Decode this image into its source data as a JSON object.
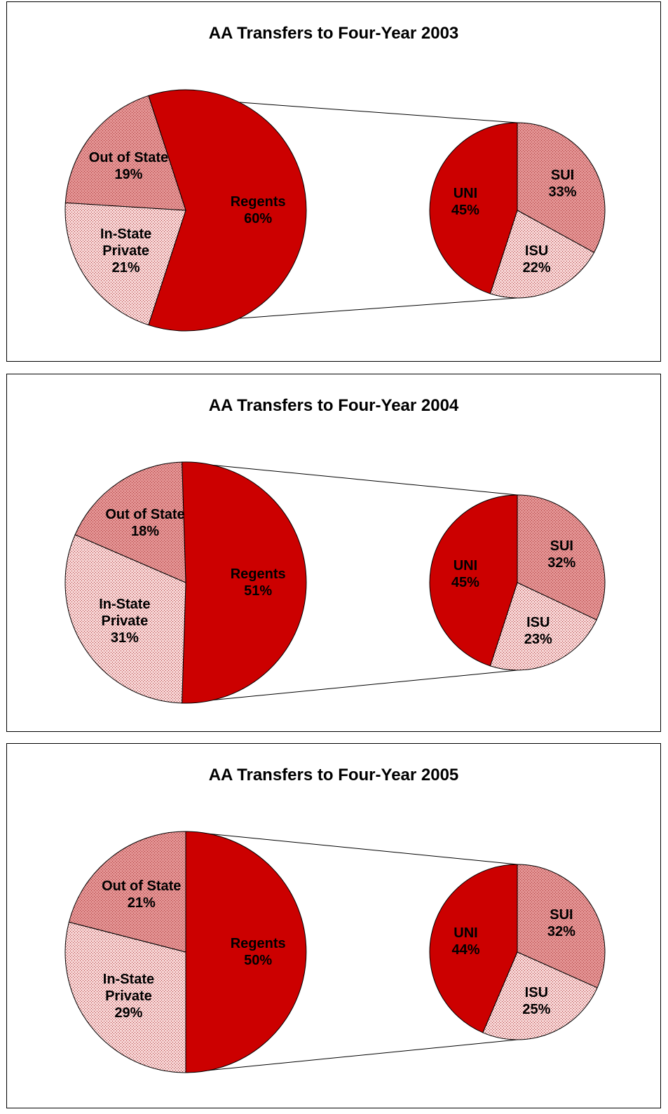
{
  "chart_data": [
    {
      "type": "pie",
      "title": "AA Transfers to Four-Year 2003",
      "categories": [
        "Out of State",
        "In-State Private",
        "Regents"
      ],
      "values": [
        19,
        21,
        60
      ],
      "value_labels": [
        "19%",
        "21%",
        "60%"
      ],
      "colors": [
        "#e39494",
        "#f7d6d6",
        "#cc0000"
      ],
      "breakout": {
        "categories": [
          "SUI",
          "ISU",
          "UNI"
        ],
        "values": [
          33,
          22,
          45
        ],
        "value_labels": [
          "33%",
          "22%",
          "45%"
        ],
        "colors": [
          "#e39494",
          "#f7d6d6",
          "#cc0000"
        ]
      }
    },
    {
      "type": "pie",
      "title": "AA Transfers to Four-Year 2004",
      "categories": [
        "Out of State",
        "In-State Private",
        "Regents"
      ],
      "values": [
        18,
        31,
        51
      ],
      "value_labels": [
        "18%",
        "31%",
        "51%"
      ],
      "colors": [
        "#e39494",
        "#f7d6d6",
        "#cc0000"
      ],
      "breakout": {
        "categories": [
          "SUI",
          "ISU",
          "UNI"
        ],
        "values": [
          32,
          23,
          45
        ],
        "value_labels": [
          "32%",
          "23%",
          "45%"
        ],
        "colors": [
          "#e39494",
          "#f7d6d6",
          "#cc0000"
        ]
      }
    },
    {
      "type": "pie",
      "title": "AA Transfers to Four-Year 2005",
      "categories": [
        "Out of State",
        "In-State Private",
        "Regents"
      ],
      "values": [
        21,
        29,
        50
      ],
      "value_labels": [
        "21%",
        "29%",
        "50%"
      ],
      "colors": [
        "#e39494",
        "#f7d6d6",
        "#cc0000"
      ],
      "breakout": {
        "categories": [
          "SUI",
          "ISU",
          "UNI"
        ],
        "values": [
          32,
          25,
          44
        ],
        "value_labels": [
          "32%",
          "25%",
          "44%"
        ],
        "colors": [
          "#e39494",
          "#f7d6d6",
          "#cc0000"
        ]
      }
    }
  ]
}
